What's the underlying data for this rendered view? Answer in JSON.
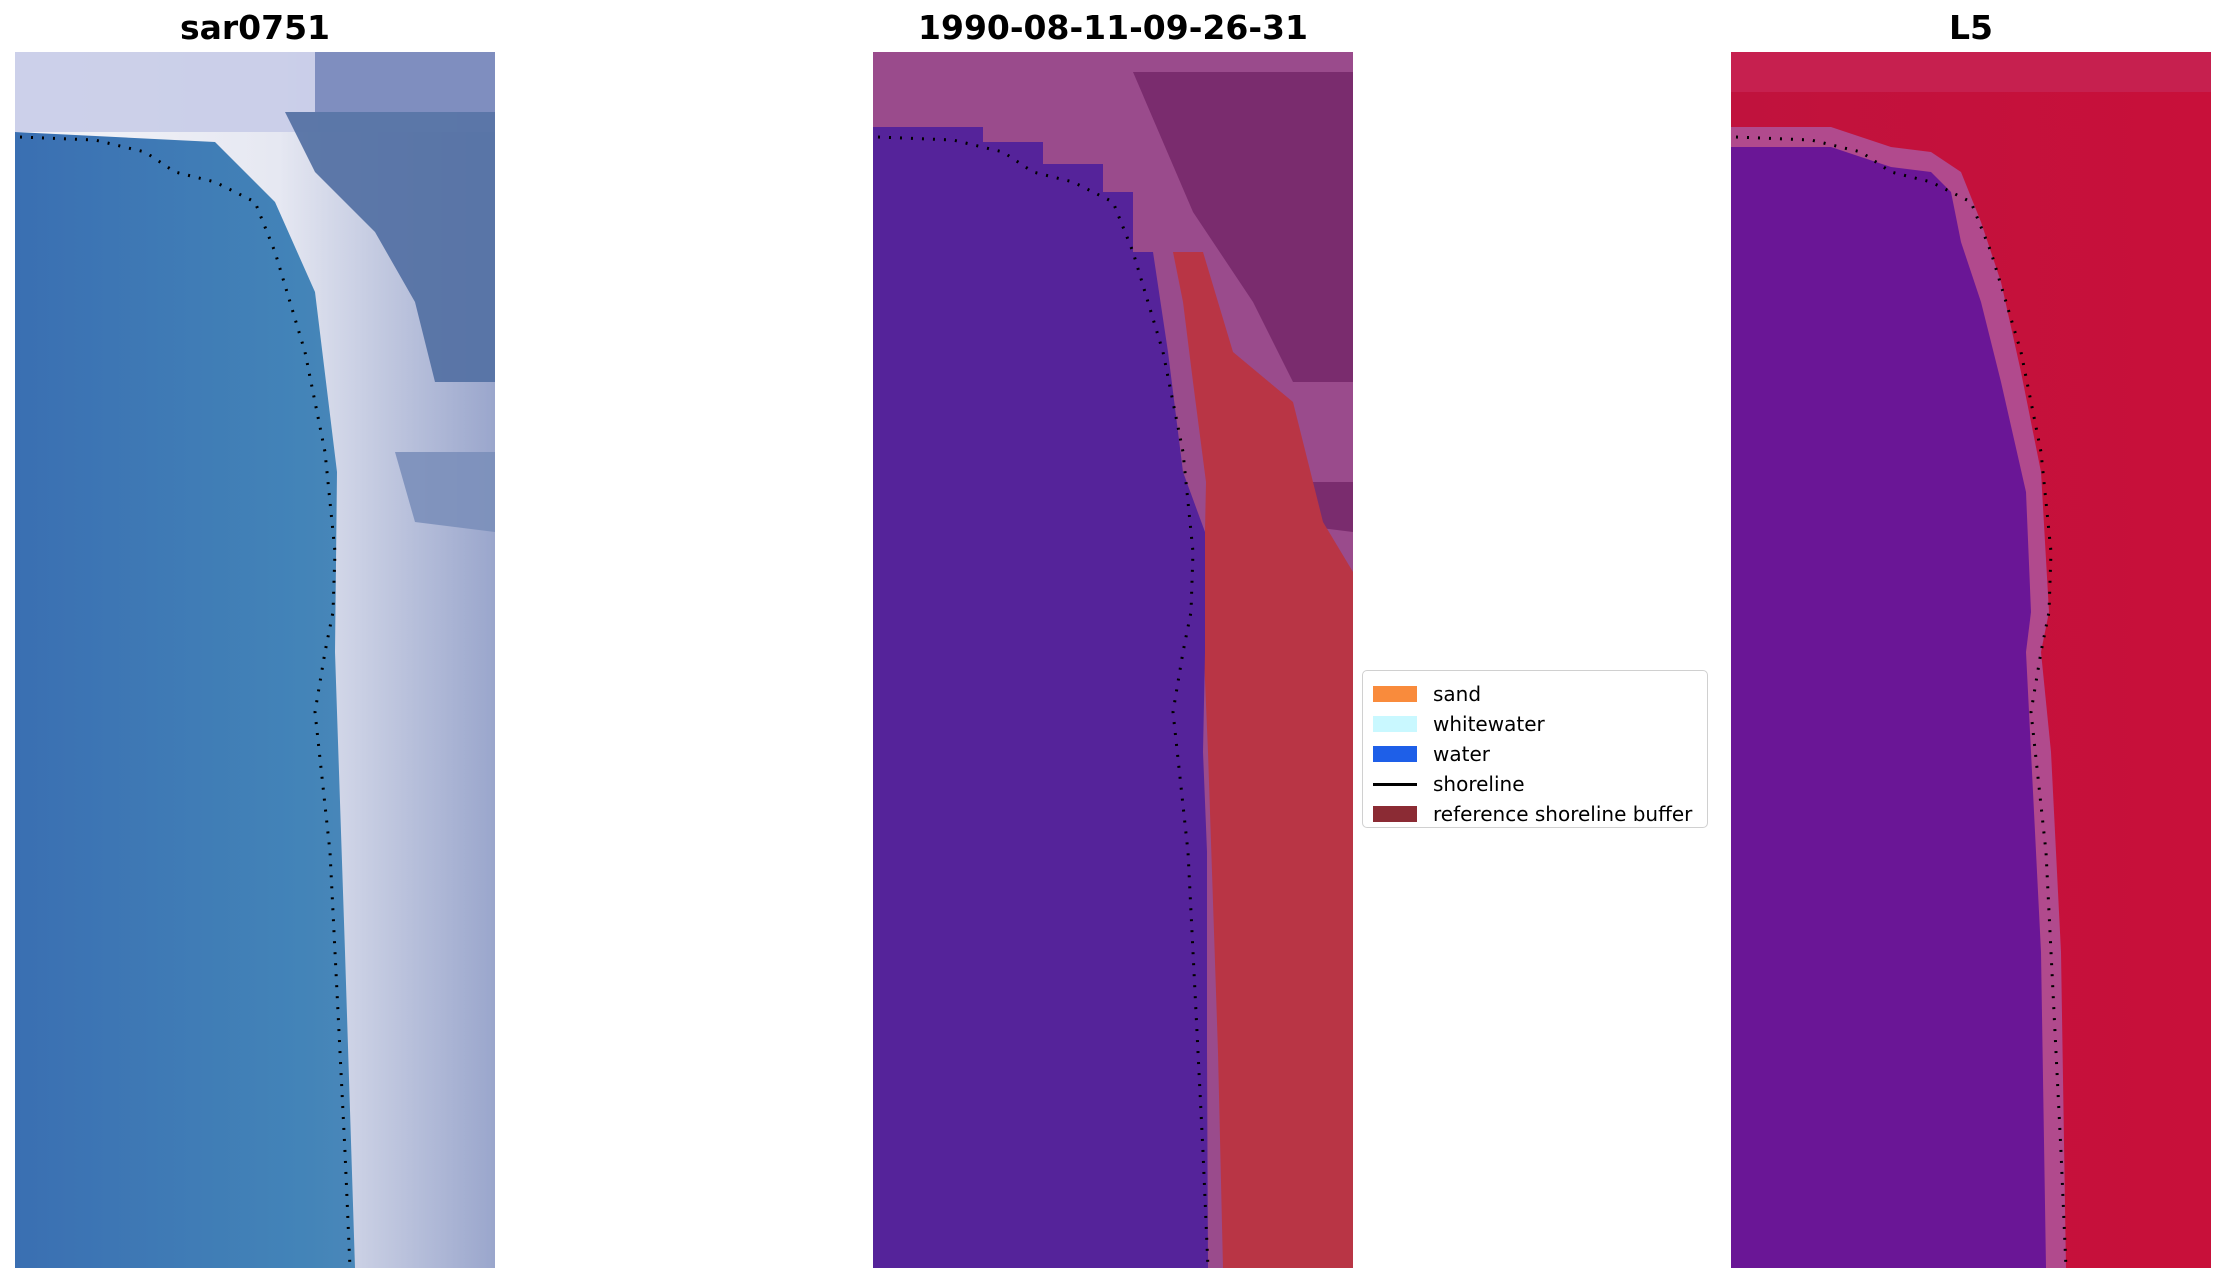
{
  "panels": [
    {
      "title": "sar0751"
    },
    {
      "title": "1990-08-11-09-26-31"
    },
    {
      "title": "L5"
    }
  ],
  "legend": {
    "items": [
      {
        "label": "sand",
        "color": "#f98b3c",
        "kind": "patch"
      },
      {
        "label": "whitewater",
        "color": "#c9f8ff",
        "kind": "patch"
      },
      {
        "label": "water",
        "color": "#1e5fe8",
        "kind": "patch"
      },
      {
        "label": "shoreline",
        "color": "#000000",
        "kind": "line"
      },
      {
        "label": "reference shoreline buffer",
        "color": "#8b2b34",
        "kind": "patch"
      }
    ]
  },
  "colors": {
    "rgb_water": "#3b78b4",
    "rgb_whitewater": "#f2f2f6",
    "rgb_land": "#4f6ea0",
    "class_water": "#55239a",
    "class_buffer": "#b93545",
    "class_land": "#7a2c6e",
    "index_water": "#6a1696",
    "index_land": "#c0123d"
  }
}
